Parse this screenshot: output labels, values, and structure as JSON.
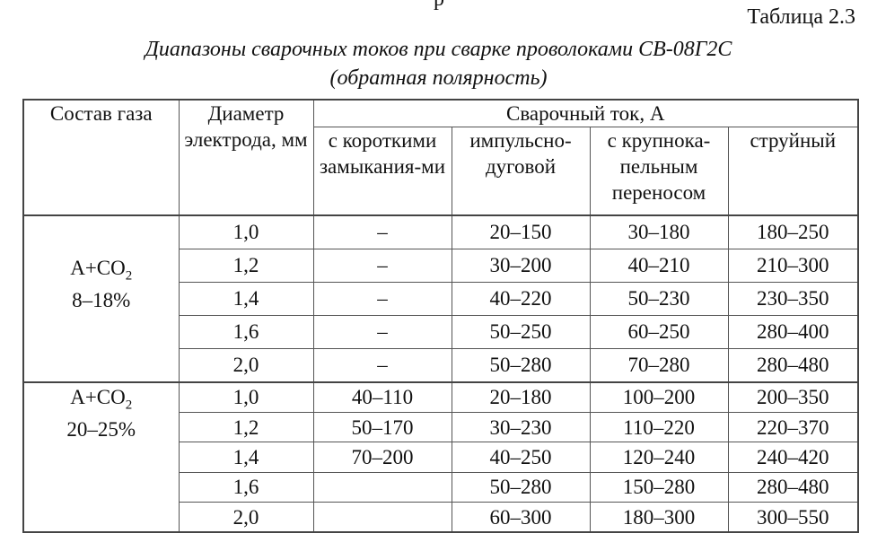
{
  "fragment_top": "р",
  "table_number": "Таблица 2.3",
  "title_line1": "Диапазоны сварочных токов при сварке проволоками СВ-08Г2С",
  "title_line2": "(обратная полярность)",
  "headers": {
    "gas": "Состав газа",
    "diameter": "Диаметр электрода, мм",
    "current": "Сварочный ток, А",
    "modes": [
      "с короткими замыкания-ми",
      "импульсно-дуговой",
      "с крупнока-пельным переносом",
      "струйный"
    ]
  },
  "groups": [
    {
      "gas_main": "А+CO",
      "gas_sub": "2",
      "gas_range": "8–18%",
      "rows": [
        [
          "1,0",
          "–",
          "20–150",
          "30–180",
          "180–250"
        ],
        [
          "1,2",
          "–",
          "30–200",
          "40–210",
          "210–300"
        ],
        [
          "1,4",
          "–",
          "40–220",
          "50–230",
          "230–350"
        ],
        [
          "1,6",
          "–",
          "50–250",
          "60–250",
          "280–400"
        ],
        [
          "2,0",
          "–",
          "50–280",
          "70–280",
          "280–480"
        ]
      ]
    },
    {
      "gas_main": "А+CO",
      "gas_sub": "2",
      "gas_range": "20–25%",
      "rows": [
        [
          "1,0",
          "40–110",
          "20–180",
          "100–200",
          "200–350"
        ],
        [
          "1,2",
          "50–170",
          "30–230",
          "110–220",
          "220–370"
        ],
        [
          "1,4",
          "70–200",
          "40–250",
          "120–240",
          "240–420"
        ],
        [
          "1,6",
          "",
          "50–280",
          "150–280",
          "280–480"
        ],
        [
          "2,0",
          "",
          "60–300",
          "180–300",
          "300–550"
        ]
      ]
    }
  ]
}
